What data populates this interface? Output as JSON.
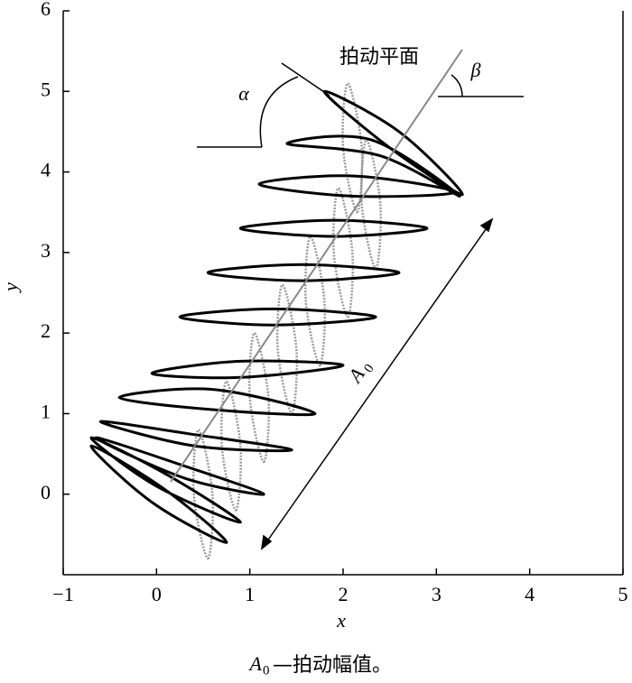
{
  "chart_data": {
    "type": "trajectory",
    "x_label": "x",
    "y_label": "y",
    "xlim": [
      -1,
      5
    ],
    "ylim": [
      -1,
      6
    ],
    "xticks": [
      {
        "value": -1,
        "label": "−1"
      },
      0,
      1,
      2,
      3,
      4,
      5
    ],
    "yticks": [
      0,
      1,
      2,
      3,
      4,
      5,
      6
    ],
    "series": [
      {
        "color": "#000000",
        "dash": false,
        "x": [
          -0.7,
          0.1,
          0.75,
          -0.05,
          null,
          -0.7,
          0.1,
          0.9,
          0.0,
          null,
          -0.65,
          0.3,
          1.15,
          0.3,
          null,
          -0.6,
          0.35,
          1.45,
          0.4,
          null,
          -0.4,
          0.6,
          1.7,
          0.6,
          null,
          -0.05,
          0.9,
          2.0,
          0.9,
          null,
          0.25,
          1.25,
          2.35,
          1.25,
          null,
          0.55,
          1.55,
          2.6,
          1.55,
          null,
          0.9,
          1.9,
          2.9,
          1.9,
          null,
          1.1,
          2.1,
          3.2,
          2.1,
          null,
          1.4,
          2.3,
          3.25,
          2.4,
          null,
          1.8,
          2.6,
          3.28,
          2.5
        ],
        "values": [
          0.6,
          0.05,
          -0.6,
          -0.1,
          null,
          0.7,
          0.25,
          -0.35,
          0.1,
          null,
          0.7,
          0.35,
          0.0,
          0.2,
          null,
          0.9,
          0.75,
          0.55,
          0.6,
          null,
          1.2,
          1.3,
          1.0,
          1.05,
          null,
          1.5,
          1.65,
          1.6,
          1.45,
          null,
          2.2,
          2.3,
          2.2,
          2.1,
          null,
          2.75,
          2.85,
          2.75,
          2.65,
          null,
          3.3,
          3.4,
          3.3,
          3.2,
          null,
          3.85,
          3.95,
          3.75,
          3.7,
          null,
          4.35,
          4.4,
          3.7,
          4.2,
          null,
          5.0,
          4.5,
          3.72,
          4.3
        ]
      },
      {
        "color": "#9a9a9a",
        "dash": true,
        "x": [
          0.55,
          0.6,
          0.45,
          0.4,
          null,
          0.85,
          0.9,
          0.75,
          0.7,
          null,
          1.15,
          1.2,
          1.05,
          1.0,
          null,
          1.45,
          1.5,
          1.35,
          1.3,
          null,
          1.75,
          1.8,
          1.65,
          1.6,
          null,
          2.05,
          2.1,
          1.95,
          1.9,
          null,
          2.35,
          2.4,
          2.25,
          2.2,
          null,
          2.15,
          2.2,
          2.05,
          2.0
        ],
        "values": [
          -0.8,
          0.0,
          0.8,
          0.0,
          null,
          -0.2,
          0.6,
          1.4,
          0.6,
          null,
          0.4,
          1.2,
          2.0,
          1.2,
          null,
          1.0,
          1.8,
          2.6,
          1.8,
          null,
          1.6,
          2.4,
          3.2,
          2.4,
          null,
          2.2,
          3.0,
          3.8,
          3.0,
          null,
          2.8,
          3.6,
          4.4,
          3.6,
          null,
          3.5,
          4.3,
          5.1,
          4.3
        ]
      }
    ],
    "annotations": {
      "plane": "拍动平面",
      "alpha": "α",
      "beta": "β",
      "amplitude": {
        "symbol": "A",
        "subscript": "0"
      }
    },
    "caption": {
      "symbol": "A",
      "subscript": "0",
      "text": "—拍动幅值。"
    }
  }
}
